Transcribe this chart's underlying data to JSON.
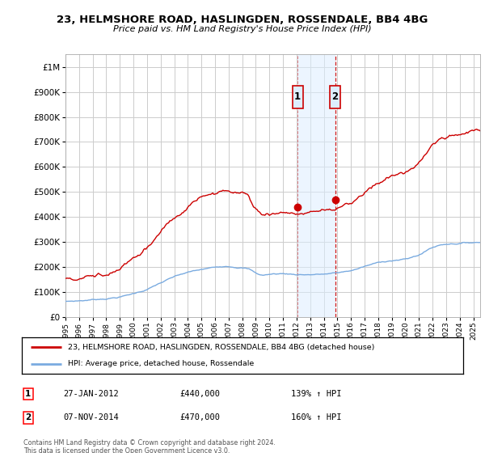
{
  "title": "23, HELMSHORE ROAD, HASLINGDEN, ROSSENDALE, BB4 4BG",
  "subtitle": "Price paid vs. HM Land Registry's House Price Index (HPI)",
  "legend_property": "23, HELMSHORE ROAD, HASLINGDEN, ROSSENDALE, BB4 4BG (detached house)",
  "legend_hpi": "HPI: Average price, detached house, Rossendale",
  "sale1_label": "1",
  "sale1_date": "27-JAN-2012",
  "sale1_price_str": "£440,000",
  "sale1_hpi_str": "139% ↑ HPI",
  "sale1_year": 2012.077,
  "sale1_price": 440000,
  "sale2_label": "2",
  "sale2_date": "07-NOV-2014",
  "sale2_price_str": "£470,000",
  "sale2_hpi_str": "160% ↑ HPI",
  "sale2_year": 2014.836,
  "sale2_price": 470000,
  "footnote_line1": "Contains HM Land Registry data © Crown copyright and database right 2024.",
  "footnote_line2": "This data is licensed under the Open Government Licence v3.0.",
  "property_color": "#cc0000",
  "hpi_color": "#7aabe0",
  "badge_bg": "#ddeeff",
  "vline_color": "#cc0000",
  "grid_color": "#cccccc",
  "bg_color": "#ffffff",
  "ylim_max": 1050000,
  "xmin": 1995.0,
  "xmax": 2025.5,
  "yticks": [
    0,
    100000,
    200000,
    300000,
    400000,
    500000,
    600000,
    700000,
    800000,
    900000,
    1000000
  ],
  "xticks": [
    1995,
    1996,
    1997,
    1998,
    1999,
    2000,
    2001,
    2002,
    2003,
    2004,
    2005,
    2006,
    2007,
    2008,
    2009,
    2010,
    2011,
    2012,
    2013,
    2014,
    2015,
    2016,
    2017,
    2018,
    2019,
    2020,
    2021,
    2022,
    2023,
    2024,
    2025
  ]
}
